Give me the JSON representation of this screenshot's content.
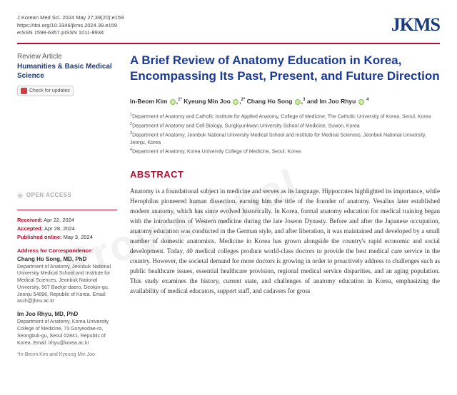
{
  "meta": {
    "citation": "J Korean Med Sci. 2024 May 27;39(20):e159",
    "doi": "https://doi.org/10.3346/jkms.2024.39.e159",
    "issn": "eISSN 1598-6357·pISSN 1011-8934"
  },
  "logo": "JKMS",
  "sidebar": {
    "review_label": "Review Article",
    "category": "Humanities & Basic Medical Science",
    "check_updates": "Check for updates",
    "open_access": "OPEN ACCESS",
    "received_label": "Received:",
    "received": "Apr 22, 2024",
    "accepted_label": "Accepted:",
    "accepted": "Apr 28, 2024",
    "published_label": "Published online:",
    "published": "May 3, 2024",
    "corr_head": "Address for Correspondence:",
    "corr1_name": "Chang Ho Song, MD, PhD",
    "corr1_body": "Department of Anatomy, Jeonbuk National University Medical School and Institute for Medical Sciences, Jeonbuk National University, 567 Baekje-daero, Deokjin-gu, Jeonju 54896, Republic of Korea. Email: asch@jbnu.ac.kr",
    "corr2_name": "Im Joo Rhyu, MD, PhD",
    "corr2_body": "Department of Anatomy, Korea University College of Medicine, 73 Goryeodae-ro, Seongbuk-gu, Seoul 02841, Republic of Korea. Email: irhyu@korea.ac.kr",
    "footnote": "*In-Beom Kim and Kyeung Min Joo"
  },
  "title": "A Brief Review of Anatomy Education in Korea, Encompassing Its Past, Present, and Future Direction",
  "authors": {
    "a1": "In-Beom Kim",
    "a2": "Kyeung Min Joo",
    "a3": "Chang Ho Song",
    "a4": "Im Joo Rhyu"
  },
  "affiliations": {
    "l1": "Department of Anatomy and Catholic Institute for Applied Anatomy, College of Medicine, The Catholic University of Korea, Seoul, Korea",
    "l2": "Department of Anatomy and Cell Biology, Sungkyunkwan University School of Medicine, Suwon, Korea",
    "l3": "Department of Anatomy, Jeonbuk National University Medical School and Institute for Medical Sciences, Jeonbuk National University, Jeonju, Korea",
    "l4": "Department of Anatomy, Korea University College of Medicine, Seoul, Korea"
  },
  "abstract": {
    "heading": "ABSTRACT",
    "body": "Anatomy is a foundational subject in medicine and serves as its language. Hippocrates highlighted its importance, while Herophilus pioneered human dissection, earning him the title of the founder of anatomy. Vesalius later established modern anatomy, which has since evolved historically. In Korea, formal anatomy education for medical training began with the introduction of Western medicine during the late Joseon Dynasty. Before and after the Japanese occupation, anatomy education was conducted in the German style, and after liberation, it was maintained and developed by a small number of domestic anatomists. Medicine in Korea has grown alongside the country's rapid economic and social development. Today, 40 medical colleges produce world-class doctors to provide the best medical care service in the country. However, the societal demand for more doctors is growing in order to proactively address to challenges such as public healthcare issues, essential healthcare provision, regional medical service disparities, and an aging population. This study examines the history, current state, and challenges of anatomy education in Korea, emphasizing the availability of medical educators, support staff, and cadavers for gross"
  },
  "watermark": "Provisional"
}
